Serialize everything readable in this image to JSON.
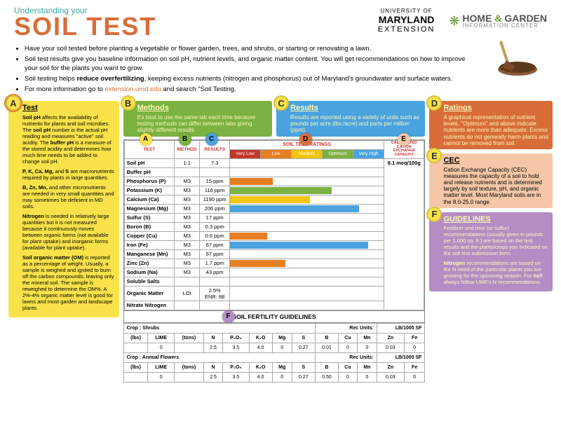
{
  "header": {
    "subtitle": "Understanding your",
    "title": "SOIL TEST",
    "logo1_univ": "UNIVERSITY OF",
    "logo1_name": "MARYLAND",
    "logo1_ext": "EXTENSION",
    "logo2_home": "HOME",
    "logo2_amp": "&",
    "logo2_garden": "GARDEN",
    "logo2_ic": "INFORMATION CENTER"
  },
  "bullets": [
    "Have your soil tested before planting a vegetable or flower garden, trees, and shrubs, or starting or renovating a lawn.",
    "Soil test results give you baseline information on soil pH, nutrient levels, and organic matter content. You will get recommendations on how to improve your soil for the plants you want to grow.",
    "Soil testing helps <b>reduce overfertilizing</b>, keeping excess nutrients (nitrogen and phosphorus) out of Maryland's groundwater and surface waters.",
    "For more information go to <a>extension.umd.edu</a> and search \"Soil Testing."
  ],
  "sections": {
    "A": {
      "letter": "A",
      "title": "Test",
      "color": "#f9e24a",
      "paras": [
        "<b>Soil pH</b> affects the availability of nutrients for plants and soil microbes. The <b>soil pH</b> number is the actual pH reading and measures \"active\" soil acidity. The <b>buffer pH</b> is a measure of the stored acidity and determines how much lime needs to be added to change soil pH.",
        "<b>P, K, Ca, Mg,</b> and <b>S</b> are macronutrients required by plants in large quantities.",
        "<b>B, Zn, Mn,</b> and other micronutrients are needed in very small quantities and may sometimes be deficient in MD soils.",
        "<b>Nitrogen</b> is needed in relatively large quantities but it is not measured because it continuously moves between organic forms (not available for plant uptake) and inorganic forms (available for plant uptake).",
        "<b>Soil organic matter (OM)</b> is reported as a percentage of weight. Usually, a sample is weighed and ignited to burn off the carbon compounds, leaving only the mineral soil. The sample is reweighed to determine the OM%. A 2%-4% organic matter level is good for lawns and most garden and landscape plants."
      ]
    },
    "B": {
      "letter": "B",
      "title": "Methods",
      "color": "#7bb241",
      "text": "It's best to use the same lab each time because testing methods can differ between labs giving slightly different results."
    },
    "C": {
      "letter": "C",
      "title": "Results",
      "color": "#4aa3df",
      "text": "Results are reported using a variety of units such as pounds per acre (lbs./acre) and parts per million (ppm)."
    },
    "D": {
      "letter": "D",
      "title": "Ratings",
      "color": "#d86d3a",
      "text": "A graphical representation of nutrient levels. \"Optimum\" and above indicate nutrients are more than adequate. Excess nutrients do not generally harm plants and cannot be removed from soil."
    },
    "E": {
      "letter": "E",
      "title": "CEC",
      "color": "#f5c7a8",
      "text": "Cation Exchange Capacity (CEC) measures the capacity of a soil to hold and release nutrients and is determined largely by soil texture, pH, and organic matter level. Most Maryland soils are in the 8.0-25.0 range."
    },
    "F": {
      "letter": "F",
      "title": "GUIDELINES",
      "color": "#b48dc4",
      "paras": [
        "Fertilizer and lime (or sulfur) recommendations (usually given in pounds per 1,000 sq. ft.) are based on the test results and the plants/crops you indicated on the soil test submission form.",
        "<b>Nitrogen</b> recommendations are based on the N need of the particular plants you are growing for the upcoming season. For <b>turf</b>, always follow UME's N recommendations."
      ]
    }
  },
  "table": {
    "headers": {
      "test": "TEST",
      "method": "METHOD",
      "results": "RESULTS",
      "ratings": "SOIL TEST RATINGS",
      "cec": "CALCULATED CATION EXCHANGE CAPACITY"
    },
    "ratings_labels": [
      "Very Low",
      "Low",
      "Medium",
      "Optimum",
      "Very High"
    ],
    "ratings_colors": [
      "#c0392b",
      "#e67e22",
      "#f1c40f",
      "#7bb241",
      "#4aa3df"
    ],
    "cec_value": "8.1 meq/100g",
    "rows": [
      {
        "test": "Soil pH",
        "method": "1:1",
        "result": "7.3",
        "bar_pct": 0,
        "bar_color": ""
      },
      {
        "test": "Buffer pH",
        "method": "",
        "result": "",
        "bar_pct": 0,
        "bar_color": ""
      },
      {
        "test": "Phosphorus (P)",
        "method": "M3",
        "result": "15 ppm",
        "bar_pct": 28,
        "bar_color": "#e67e22"
      },
      {
        "test": "Potassium (K)",
        "method": "M3",
        "result": "116 ppm",
        "bar_pct": 66,
        "bar_color": "#7bb241"
      },
      {
        "test": "Calcium (Ca)",
        "method": "M3",
        "result": "1190 ppm",
        "bar_pct": 52,
        "bar_color": "#f1c40f"
      },
      {
        "test": "Magnesium (Mg)",
        "method": "M3",
        "result": "206 ppm",
        "bar_pct": 84,
        "bar_color": "#4aa3df"
      },
      {
        "test": "Sulfur (S)",
        "method": "M3",
        "result": "17 ppm",
        "bar_pct": 0,
        "bar_color": ""
      },
      {
        "test": "Boron (B)",
        "method": "M3",
        "result": "0.3 ppm",
        "bar_pct": 0,
        "bar_color": ""
      },
      {
        "test": "Copper (Cu)",
        "method": "M3",
        "result": "0.6 ppm",
        "bar_pct": 24,
        "bar_color": "#e67e22"
      },
      {
        "test": "Iron (Fe)",
        "method": "M3",
        "result": "67 ppm",
        "bar_pct": 90,
        "bar_color": "#4aa3df"
      },
      {
        "test": "Manganese (Mn)",
        "method": "M3",
        "result": "57 ppm",
        "bar_pct": 0,
        "bar_color": ""
      },
      {
        "test": "Zinc (Zn)",
        "method": "M3",
        "result": "1.7 ppm",
        "bar_pct": 36,
        "bar_color": "#e67e22"
      },
      {
        "test": "Sodium (Na)",
        "method": "M3",
        "result": "43 ppm",
        "bar_pct": 0,
        "bar_color": ""
      },
      {
        "test": "Soluble Salts",
        "method": "",
        "result": "",
        "bar_pct": 0,
        "bar_color": ""
      },
      {
        "test": "Organic Matter",
        "method": "LOI",
        "result": "2.5% ENR: 88",
        "bar_pct": 0,
        "bar_color": ""
      },
      {
        "test": "Nitrate Nitrogen",
        "method": "",
        "result": "",
        "bar_pct": 0,
        "bar_color": ""
      }
    ]
  },
  "guidelines": {
    "title": "SOIL FERTILITY GUIDELINES",
    "units_label": "Rec Units:",
    "units_value": "LB/1000 SF",
    "cols": [
      "(lbs)",
      "LIME",
      "(tons)",
      "N",
      "P₂O₅",
      "K₂O",
      "Mg",
      "S",
      "B",
      "Cu",
      "Mn",
      "Zn",
      "Fe"
    ],
    "crops": [
      {
        "name": "Crop :  Shrubs",
        "vals": [
          "",
          "0",
          "",
          "2.5",
          "3.5",
          "4.0",
          "0",
          "0.27",
          "0.01",
          "0",
          "0",
          "0.03",
          "0"
        ]
      },
      {
        "name": "Crop :  Annual Flowers",
        "vals": [
          "",
          "0",
          "",
          "2.5",
          "3.5",
          "4.0",
          "0",
          "0.27",
          "0.50",
          "0",
          "0",
          "0.03",
          "0"
        ]
      }
    ]
  }
}
